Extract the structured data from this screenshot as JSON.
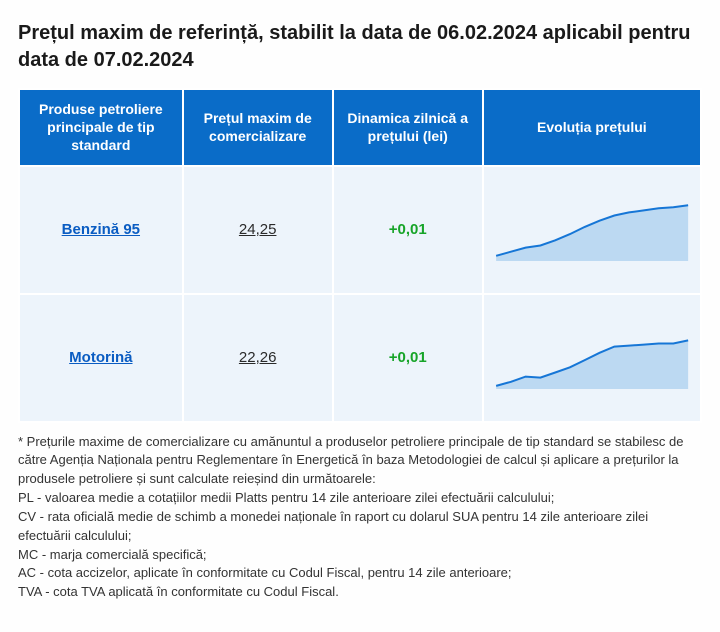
{
  "title": "Prețul maxim de referință, stabilit la data de 06.02.2024 aplicabil pentru data de 07.02.2024",
  "table": {
    "headers": {
      "product": "Produse petroliere principale de tip standard",
      "price": "Prețul maxim de comercializare",
      "delta": "Dinamica zilnică a prețului (lei)",
      "evo": "Evoluția prețului"
    },
    "rows": [
      {
        "product": "Benzină 95",
        "price": "24,25",
        "delta": "+0,01",
        "delta_color": "#17a428",
        "spark": {
          "type": "area",
          "values": [
            20,
            24,
            28,
            30,
            35,
            41,
            48,
            54,
            59,
            62,
            64,
            66,
            67,
            69
          ],
          "line_color": "#1676d6",
          "fill_color": "#bcd9f2",
          "line_width": 2,
          "ymin": 15,
          "ymax": 75
        }
      },
      {
        "product": "Motorină",
        "price": "22,26",
        "delta": "+0,01",
        "delta_color": "#17a428",
        "spark": {
          "type": "area",
          "values": [
            18,
            22,
            27,
            26,
            31,
            36,
            43,
            50,
            56,
            57,
            58,
            59,
            59,
            62
          ],
          "line_color": "#1676d6",
          "fill_color": "#bcd9f2",
          "line_width": 2,
          "ymin": 15,
          "ymax": 75
        }
      }
    ]
  },
  "footnotes": [
    "* Prețurile maxime de comercializare cu amănuntul a produselor petroliere principale de tip standard se stabilesc de către Agenția Naționala pentru Reglementare în Energetică în baza Metodologiei de calcul și aplicare a prețurilor la produsele petroliere și sunt calculate reieșind din următoarele:",
    "PL - valoarea medie a cotațiilor medii Platts pentru 14 zile anterioare zilei efectuării calculului;",
    "CV - rata oficială medie de schimb a monedei naționale în raport cu dolarul SUA pentru 14 zile anterioare zilei efectuării calculului;",
    "MC - marja comercială specifică;",
    "AC - cota accizelor, aplicate în conformitate cu Codul Fiscal, pentru 14 zile anterioare;",
    "TVA - cota TVA aplicată în conformitate cu Codul Fiscal."
  ]
}
